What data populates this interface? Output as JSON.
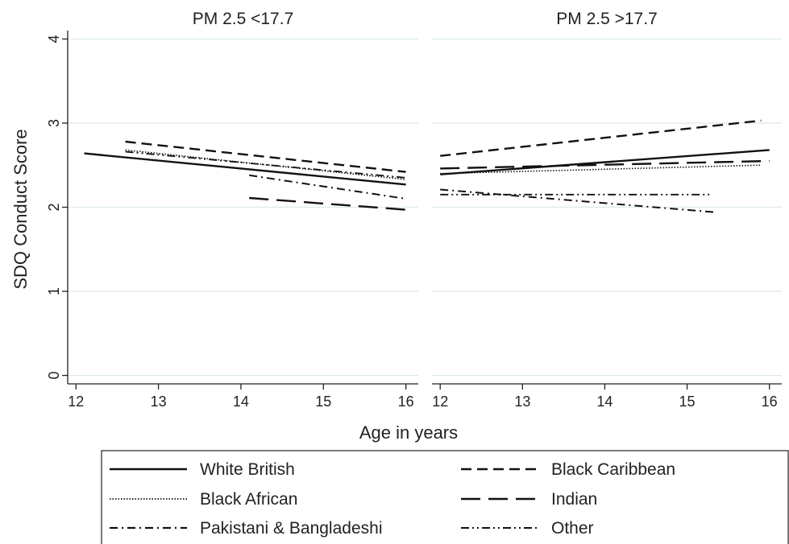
{
  "chart_data": {
    "type": "line",
    "ylabel": "SDQ Conduct Score",
    "xlabel": "Age in years",
    "xlim": [
      11.9,
      16.15
    ],
    "ylim": [
      -0.1,
      4.1
    ],
    "x_ticks": [
      12,
      13,
      14,
      15,
      16
    ],
    "y_ticks": [
      0,
      1,
      2,
      3,
      4
    ],
    "grid": true,
    "legend_position": "bottom",
    "legend_columns": 2,
    "panels": [
      {
        "title": "PM 2.5 <17.7",
        "series": [
          {
            "name": "White British",
            "x": [
              12.1,
              16.0
            ],
            "y": [
              2.64,
              2.27
            ]
          },
          {
            "name": "Black Caribbean",
            "x": [
              12.6,
              16.0
            ],
            "y": [
              2.78,
              2.42
            ]
          },
          {
            "name": "Black African",
            "x": [
              12.6,
              16.0
            ],
            "y": [
              2.68,
              2.33
            ]
          },
          {
            "name": "Indian",
            "x": [
              14.1,
              16.0
            ],
            "y": [
              2.11,
              1.97
            ]
          },
          {
            "name": "Pakistani & Bangladeshi",
            "x": [
              14.1,
              16.0
            ],
            "y": [
              2.38,
              2.1
            ]
          },
          {
            "name": "Other",
            "x": [
              12.6,
              16.0
            ],
            "y": [
              2.66,
              2.35
            ]
          }
        ]
      },
      {
        "title": "PM 2.5 >17.7",
        "series": [
          {
            "name": "White British",
            "x": [
              12.0,
              16.0
            ],
            "y": [
              2.39,
              2.68
            ]
          },
          {
            "name": "Black Caribbean",
            "x": [
              12.0,
              15.9
            ],
            "y": [
              2.61,
              3.03
            ]
          },
          {
            "name": "Black African",
            "x": [
              12.0,
              15.9
            ],
            "y": [
              2.4,
              2.5
            ]
          },
          {
            "name": "Indian",
            "x": [
              12.0,
              16.0
            ],
            "y": [
              2.46,
              2.55
            ]
          },
          {
            "name": "Pakistani & Bangladeshi",
            "x": [
              12.0,
              15.35
            ],
            "y": [
              2.21,
              1.94
            ]
          },
          {
            "name": "Other",
            "x": [
              12.0,
              15.3
            ],
            "y": [
              2.15,
              2.15
            ]
          }
        ]
      }
    ],
    "legend": [
      {
        "name": "White British",
        "style": "solid"
      },
      {
        "name": "Black Caribbean",
        "style": "dash"
      },
      {
        "name": "Black African",
        "style": "dot"
      },
      {
        "name": "Indian",
        "style": "longdash"
      },
      {
        "name": "Pakistani & Bangladeshi",
        "style": "dashdot"
      },
      {
        "name": "Other",
        "style": "dashdotdot"
      }
    ],
    "colors": {
      "line": "#111111",
      "grid": "#dcebe8",
      "axis": "#222222",
      "legend_border": "#222222"
    }
  }
}
